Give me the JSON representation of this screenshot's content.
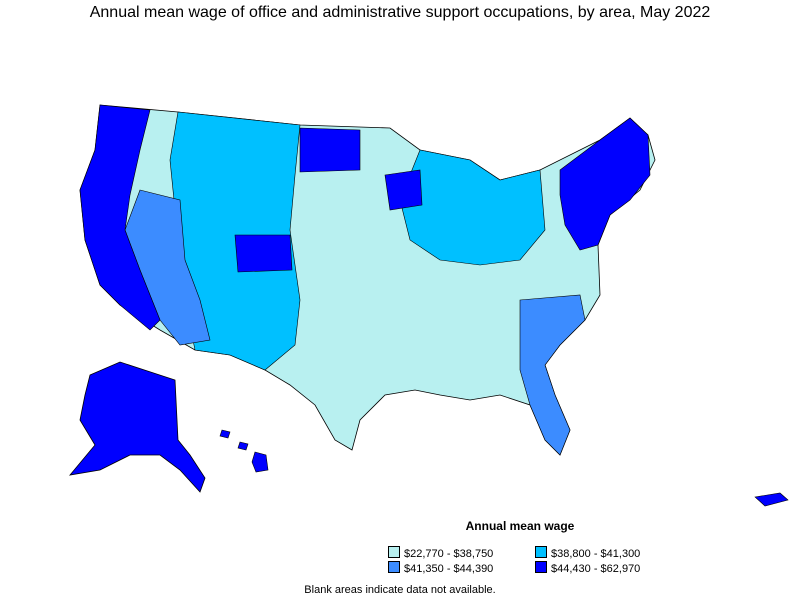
{
  "title": "Annual mean wage of office and administrative support occupations, by area, May 2022",
  "legend": {
    "title": "Annual mean wage",
    "items": [
      {
        "label": "$22,770 - $38,750",
        "color": "#b8f0f0"
      },
      {
        "label": "$38,800 - $41,300",
        "color": "#00c0ff"
      },
      {
        "label": "$41,350 - $44,390",
        "color": "#3c8cff"
      },
      {
        "label": "$44,430 - $62,970",
        "color": "#0000ff"
      }
    ]
  },
  "note": "Blank areas indicate data not available."
}
